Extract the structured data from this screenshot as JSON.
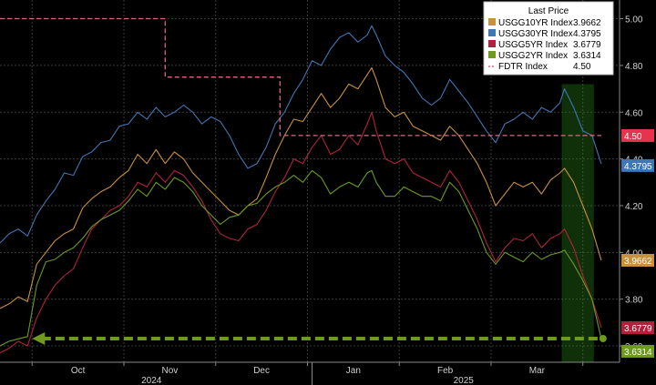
{
  "chart_data": {
    "type": "line",
    "y_axis": {
      "ticks": [
        "5.00",
        "4.80",
        "4.60",
        "4.40",
        "4.20",
        "4.00",
        "3.80",
        "3.60"
      ],
      "tick_values": [
        5.0,
        4.8,
        4.6,
        4.4,
        4.2,
        4.0,
        3.8,
        3.6
      ],
      "ylim": [
        3.53,
        5.08
      ],
      "position": "right"
    },
    "x_axis": {
      "month_labels": [
        "Oct",
        "Nov",
        "Dec",
        "Jan",
        "Feb",
        "Mar"
      ],
      "month_values": [
        10.0,
        11.0,
        12.0,
        13.0,
        14.0,
        15.0
      ],
      "year_labels": [
        "2024",
        "2025"
      ],
      "year_values": [
        10.8,
        14.2
      ],
      "xlim": [
        9.15,
        15.9
      ]
    },
    "grid": true,
    "legend": {
      "title": "Last Price",
      "placement": "top-right",
      "entries": [
        {
          "label": "USGG10YR Index",
          "value": "3.9662",
          "color": "#c8913c",
          "style": "square"
        },
        {
          "label": "USGG30YR Index",
          "value": "4.3795",
          "color": "#3f76b5",
          "style": "square"
        },
        {
          "label": "USGG5YR Index",
          "value": "3.6779",
          "color": "#b0223c",
          "style": "square"
        },
        {
          "label": "USGG2YR Index",
          "value": "3.6314",
          "color": "#6e9a1e",
          "style": "square"
        },
        {
          "label": "FDTR Index",
          "value": "4.50",
          "color": "#d66a82",
          "style": "dashed"
        }
      ]
    },
    "last_value_tags": [
      {
        "label": "4.50",
        "value": 4.5,
        "color": "#e8334f"
      },
      {
        "label": "4.3795",
        "value": 4.3795,
        "color": "#3f76b5"
      },
      {
        "label": "3.9662",
        "value": 3.9662,
        "color": "#c8913c"
      },
      {
        "label": "3.6779",
        "value": 3.6779,
        "color": "#b0223c"
      },
      {
        "label": "3.6314",
        "value": 3.6314,
        "color": "#6e9a1e"
      }
    ],
    "series": [
      {
        "name": "USGG30YR Index",
        "color": "#3f76b5",
        "points": [
          [
            9.15,
            4.04
          ],
          [
            9.25,
            4.08
          ],
          [
            9.35,
            4.1
          ],
          [
            9.45,
            4.07
          ],
          [
            9.55,
            4.16
          ],
          [
            9.65,
            4.22
          ],
          [
            9.75,
            4.27
          ],
          [
            9.85,
            4.34
          ],
          [
            9.95,
            4.33
          ],
          [
            10.05,
            4.41
          ],
          [
            10.15,
            4.43
          ],
          [
            10.25,
            4.47
          ],
          [
            10.35,
            4.48
          ],
          [
            10.45,
            4.54
          ],
          [
            10.55,
            4.55
          ],
          [
            10.65,
            4.6
          ],
          [
            10.75,
            4.57
          ],
          [
            10.85,
            4.62
          ],
          [
            10.95,
            4.58
          ],
          [
            11.05,
            4.6
          ],
          [
            11.15,
            4.63
          ],
          [
            11.25,
            4.6
          ],
          [
            11.35,
            4.55
          ],
          [
            11.45,
            4.58
          ],
          [
            11.55,
            4.56
          ],
          [
            11.65,
            4.5
          ],
          [
            11.75,
            4.42
          ],
          [
            11.85,
            4.36
          ],
          [
            11.95,
            4.38
          ],
          [
            12.05,
            4.45
          ],
          [
            12.15,
            4.55
          ],
          [
            12.25,
            4.6
          ],
          [
            12.35,
            4.68
          ],
          [
            12.45,
            4.74
          ],
          [
            12.55,
            4.82
          ],
          [
            12.65,
            4.8
          ],
          [
            12.75,
            4.87
          ],
          [
            12.85,
            4.92
          ],
          [
            12.95,
            4.94
          ],
          [
            13.05,
            4.9
          ],
          [
            13.15,
            4.93
          ],
          [
            13.2,
            4.97
          ],
          [
            13.25,
            4.93
          ],
          [
            13.35,
            4.84
          ],
          [
            13.45,
            4.8
          ],
          [
            13.55,
            4.77
          ],
          [
            13.65,
            4.72
          ],
          [
            13.75,
            4.66
          ],
          [
            13.85,
            4.63
          ],
          [
            13.95,
            4.66
          ],
          [
            14.05,
            4.74
          ],
          [
            14.15,
            4.69
          ],
          [
            14.25,
            4.64
          ],
          [
            14.35,
            4.58
          ],
          [
            14.45,
            4.52
          ],
          [
            14.55,
            4.47
          ],
          [
            14.65,
            4.55
          ],
          [
            14.75,
            4.57
          ],
          [
            14.85,
            4.6
          ],
          [
            14.95,
            4.57
          ],
          [
            15.05,
            4.62
          ],
          [
            15.15,
            4.6
          ],
          [
            15.25,
            4.64
          ],
          [
            15.3,
            4.7
          ],
          [
            15.4,
            4.62
          ],
          [
            15.5,
            4.52
          ],
          [
            15.6,
            4.5
          ],
          [
            15.7,
            4.3795
          ]
        ]
      },
      {
        "name": "USGG10YR Index",
        "color": "#c8913c",
        "points": [
          [
            9.15,
            3.76
          ],
          [
            9.25,
            3.78
          ],
          [
            9.35,
            3.81
          ],
          [
            9.45,
            3.79
          ],
          [
            9.55,
            3.95
          ],
          [
            9.65,
            4.0
          ],
          [
            9.75,
            4.05
          ],
          [
            9.85,
            4.08
          ],
          [
            9.95,
            4.1
          ],
          [
            10.05,
            4.19
          ],
          [
            10.15,
            4.23
          ],
          [
            10.25,
            4.26
          ],
          [
            10.35,
            4.28
          ],
          [
            10.45,
            4.32
          ],
          [
            10.55,
            4.35
          ],
          [
            10.65,
            4.42
          ],
          [
            10.75,
            4.38
          ],
          [
            10.85,
            4.44
          ],
          [
            10.95,
            4.38
          ],
          [
            11.05,
            4.43
          ],
          [
            11.15,
            4.4
          ],
          [
            11.25,
            4.34
          ],
          [
            11.35,
            4.3
          ],
          [
            11.45,
            4.26
          ],
          [
            11.55,
            4.22
          ],
          [
            11.65,
            4.18
          ],
          [
            11.75,
            4.16
          ],
          [
            11.85,
            4.2
          ],
          [
            11.95,
            4.23
          ],
          [
            12.05,
            4.32
          ],
          [
            12.15,
            4.42
          ],
          [
            12.25,
            4.5
          ],
          [
            12.35,
            4.57
          ],
          [
            12.45,
            4.56
          ],
          [
            12.55,
            4.62
          ],
          [
            12.65,
            4.68
          ],
          [
            12.75,
            4.62
          ],
          [
            12.85,
            4.66
          ],
          [
            12.95,
            4.72
          ],
          [
            13.05,
            4.7
          ],
          [
            13.15,
            4.76
          ],
          [
            13.2,
            4.79
          ],
          [
            13.25,
            4.74
          ],
          [
            13.35,
            4.62
          ],
          [
            13.45,
            4.58
          ],
          [
            13.55,
            4.6
          ],
          [
            13.65,
            4.54
          ],
          [
            13.75,
            4.52
          ],
          [
            13.85,
            4.5
          ],
          [
            13.95,
            4.48
          ],
          [
            14.05,
            4.54
          ],
          [
            14.15,
            4.5
          ],
          [
            14.25,
            4.44
          ],
          [
            14.35,
            4.38
          ],
          [
            14.45,
            4.3
          ],
          [
            14.55,
            4.2
          ],
          [
            14.65,
            4.25
          ],
          [
            14.75,
            4.3
          ],
          [
            14.85,
            4.28
          ],
          [
            14.95,
            4.3
          ],
          [
            15.05,
            4.25
          ],
          [
            15.15,
            4.31
          ],
          [
            15.25,
            4.34
          ],
          [
            15.3,
            4.36
          ],
          [
            15.4,
            4.3
          ],
          [
            15.5,
            4.2
          ],
          [
            15.6,
            4.1
          ],
          [
            15.7,
            3.9662
          ]
        ]
      },
      {
        "name": "USGG5YR Index",
        "color": "#b0223c",
        "points": [
          [
            9.15,
            3.57
          ],
          [
            9.25,
            3.59
          ],
          [
            9.35,
            3.62
          ],
          [
            9.45,
            3.6
          ],
          [
            9.55,
            3.72
          ],
          [
            9.65,
            3.8
          ],
          [
            9.75,
            3.86
          ],
          [
            9.85,
            3.9
          ],
          [
            9.95,
            3.93
          ],
          [
            10.05,
            4.02
          ],
          [
            10.15,
            4.1
          ],
          [
            10.25,
            4.14
          ],
          [
            10.35,
            4.18
          ],
          [
            10.45,
            4.2
          ],
          [
            10.55,
            4.24
          ],
          [
            10.65,
            4.3
          ],
          [
            10.75,
            4.28
          ],
          [
            10.85,
            4.34
          ],
          [
            10.95,
            4.3
          ],
          [
            11.05,
            4.35
          ],
          [
            11.15,
            4.33
          ],
          [
            11.25,
            4.28
          ],
          [
            11.35,
            4.22
          ],
          [
            11.45,
            4.14
          ],
          [
            11.55,
            4.08
          ],
          [
            11.65,
            4.06
          ],
          [
            11.75,
            4.05
          ],
          [
            11.85,
            4.1
          ],
          [
            11.95,
            4.12
          ],
          [
            12.05,
            4.18
          ],
          [
            12.15,
            4.26
          ],
          [
            12.25,
            4.32
          ],
          [
            12.35,
            4.4
          ],
          [
            12.45,
            4.38
          ],
          [
            12.55,
            4.45
          ],
          [
            12.65,
            4.5
          ],
          [
            12.75,
            4.42
          ],
          [
            12.85,
            4.44
          ],
          [
            12.95,
            4.5
          ],
          [
            13.05,
            4.46
          ],
          [
            13.15,
            4.55
          ],
          [
            13.2,
            4.6
          ],
          [
            13.25,
            4.52
          ],
          [
            13.35,
            4.4
          ],
          [
            13.45,
            4.38
          ],
          [
            13.55,
            4.4
          ],
          [
            13.65,
            4.34
          ],
          [
            13.75,
            4.32
          ],
          [
            13.85,
            4.3
          ],
          [
            13.95,
            4.28
          ],
          [
            14.05,
            4.35
          ],
          [
            14.15,
            4.3
          ],
          [
            14.25,
            4.22
          ],
          [
            14.35,
            4.14
          ],
          [
            14.45,
            4.04
          ],
          [
            14.55,
            3.96
          ],
          [
            14.65,
            4.02
          ],
          [
            14.75,
            4.06
          ],
          [
            14.85,
            4.05
          ],
          [
            14.95,
            4.08
          ],
          [
            15.05,
            4.02
          ],
          [
            15.15,
            4.06
          ],
          [
            15.25,
            4.08
          ],
          [
            15.3,
            4.1
          ],
          [
            15.4,
            4.02
          ],
          [
            15.5,
            3.9
          ],
          [
            15.6,
            3.8
          ],
          [
            15.7,
            3.6779
          ]
        ]
      },
      {
        "name": "USGG2YR Index",
        "color": "#6e9a1e",
        "points": [
          [
            9.15,
            3.6
          ],
          [
            9.25,
            3.62
          ],
          [
            9.35,
            3.63
          ],
          [
            9.45,
            3.64
          ],
          [
            9.55,
            3.86
          ],
          [
            9.65,
            3.96
          ],
          [
            9.75,
            3.97
          ],
          [
            9.85,
            4.0
          ],
          [
            9.95,
            4.02
          ],
          [
            10.05,
            4.06
          ],
          [
            10.15,
            4.11
          ],
          [
            10.25,
            4.14
          ],
          [
            10.35,
            4.16
          ],
          [
            10.45,
            4.18
          ],
          [
            10.55,
            4.22
          ],
          [
            10.65,
            4.27
          ],
          [
            10.75,
            4.24
          ],
          [
            10.85,
            4.3
          ],
          [
            10.95,
            4.27
          ],
          [
            11.05,
            4.32
          ],
          [
            11.15,
            4.3
          ],
          [
            11.25,
            4.26
          ],
          [
            11.35,
            4.2
          ],
          [
            11.45,
            4.16
          ],
          [
            11.55,
            4.12
          ],
          [
            11.65,
            4.15
          ],
          [
            11.75,
            4.16
          ],
          [
            11.85,
            4.2
          ],
          [
            11.95,
            4.21
          ],
          [
            12.05,
            4.25
          ],
          [
            12.15,
            4.28
          ],
          [
            12.25,
            4.3
          ],
          [
            12.35,
            4.33
          ],
          [
            12.45,
            4.3
          ],
          [
            12.55,
            4.35
          ],
          [
            12.65,
            4.32
          ],
          [
            12.75,
            4.25
          ],
          [
            12.85,
            4.28
          ],
          [
            12.95,
            4.3
          ],
          [
            13.05,
            4.28
          ],
          [
            13.15,
            4.34
          ],
          [
            13.2,
            4.35
          ],
          [
            13.25,
            4.3
          ],
          [
            13.35,
            4.24
          ],
          [
            13.45,
            4.24
          ],
          [
            13.55,
            4.28
          ],
          [
            13.65,
            4.26
          ],
          [
            13.75,
            4.24
          ],
          [
            13.85,
            4.24
          ],
          [
            13.95,
            4.22
          ],
          [
            14.05,
            4.3
          ],
          [
            14.15,
            4.26
          ],
          [
            14.25,
            4.18
          ],
          [
            14.35,
            4.1
          ],
          [
            14.45,
            4.0
          ],
          [
            14.55,
            3.95
          ],
          [
            14.65,
            4.0
          ],
          [
            14.75,
            3.98
          ],
          [
            14.85,
            3.96
          ],
          [
            14.95,
            4.0
          ],
          [
            15.05,
            3.97
          ],
          [
            15.15,
            3.99
          ],
          [
            15.25,
            4.0
          ],
          [
            15.3,
            4.01
          ],
          [
            15.4,
            3.95
          ],
          [
            15.5,
            3.88
          ],
          [
            15.6,
            3.8
          ],
          [
            15.7,
            3.6314
          ]
        ]
      },
      {
        "name": "FDTR Index",
        "color": "#d66a82",
        "style": "dashed-step",
        "points": [
          [
            9.15,
            5.0
          ],
          [
            10.95,
            5.0
          ],
          [
            10.95,
            4.75
          ],
          [
            12.2,
            4.75
          ],
          [
            12.2,
            4.5
          ],
          [
            15.7,
            4.5
          ]
        ]
      }
    ],
    "highlight_region": {
      "x_from": 15.27,
      "x_to": 15.62,
      "color": "#2f8a1e"
    },
    "arrow_annotation": {
      "from_x": 15.72,
      "to_x": 9.5,
      "y": 3.6314,
      "color": "#6e9a1e"
    }
  }
}
